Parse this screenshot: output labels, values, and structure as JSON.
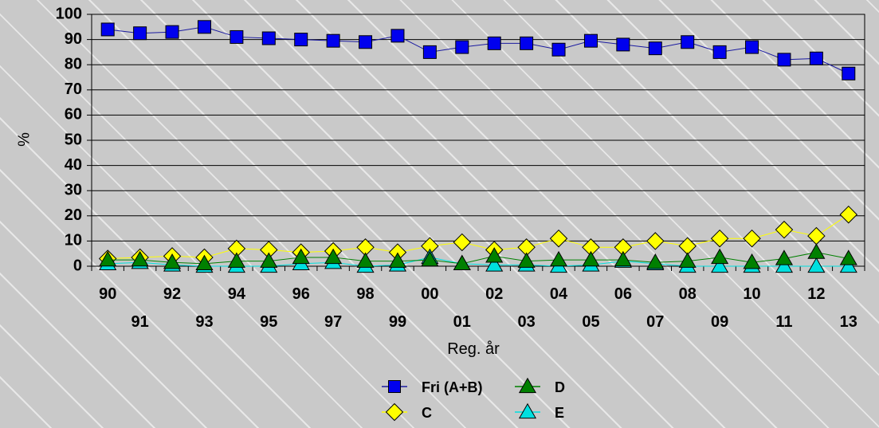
{
  "chart_data": {
    "type": "line",
    "title": "",
    "xlabel": "Reg. år",
    "ylabel": "%",
    "ylim": [
      0,
      100
    ],
    "yticks": [
      0,
      10,
      20,
      30,
      40,
      50,
      60,
      70,
      80,
      90,
      100
    ],
    "grid": "horizontal",
    "legend_position": "bottom",
    "categories": [
      "90",
      "91",
      "92",
      "93",
      "94",
      "95",
      "96",
      "97",
      "98",
      "99",
      "00",
      "01",
      "02",
      "03",
      "04",
      "05",
      "06",
      "07",
      "08",
      "09",
      "10",
      "11",
      "12",
      "13"
    ],
    "series": [
      {
        "name": "Fri (A+B)",
        "marker": "square",
        "color": "#0000ee",
        "line_color": "#1a1aa0",
        "values": [
          94,
          92.5,
          93,
          95,
          91,
          90.5,
          90,
          89.5,
          89,
          91.5,
          85,
          87,
          88.5,
          88.5,
          86,
          89.5,
          88,
          86.5,
          89,
          85,
          87,
          82,
          82.5,
          76.5
        ]
      },
      {
        "name": "C",
        "marker": "diamond",
        "color": "#ffff00",
        "line_color": "#ffff00",
        "values": [
          3,
          3.5,
          4,
          3.5,
          7,
          6.5,
          5.5,
          6,
          7.5,
          5.5,
          8,
          9.5,
          6.5,
          7.5,
          11,
          7.5,
          7.5,
          10,
          8,
          11,
          11,
          14.5,
          12,
          20.5
        ]
      },
      {
        "name": "D",
        "marker": "triangle",
        "color": "#008000",
        "line_color": "#008000",
        "values": [
          2.5,
          2.5,
          1.5,
          1,
          2,
          2,
          3.5,
          3.5,
          2,
          2,
          2.5,
          1,
          4,
          2,
          2.5,
          2.5,
          2.5,
          1.5,
          2,
          3.5,
          1.5,
          3,
          5.5,
          3
        ]
      },
      {
        "name": "E",
        "marker": "triangle",
        "color": "#00e0e0",
        "line_color": "#00e0e0",
        "values": [
          1,
          1.5,
          0.5,
          0,
          0,
          0,
          1,
          1.5,
          0,
          0.5,
          3.5,
          1,
          0.5,
          0.5,
          0,
          0.5,
          2,
          1,
          0,
          0,
          0,
          0,
          0,
          0
        ]
      }
    ]
  }
}
